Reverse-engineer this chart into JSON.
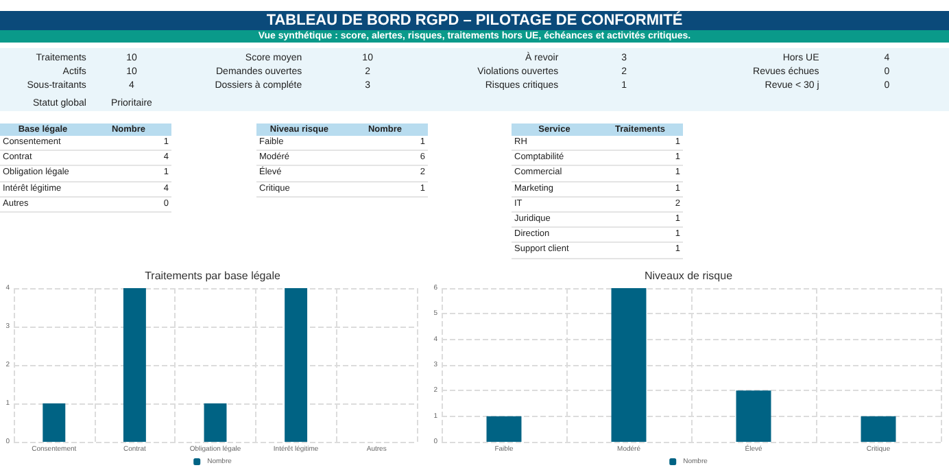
{
  "chart_data": [
    {
      "type": "other",
      "title": "TABLEAU DE BORD RGPD – PILOTAGE DE CONFORMITÉ",
      "subtitle": "Vue synthétique : score, alertes, risques, traitements hors UE, échéances et activités critiques."
    },
    {
      "type": "other",
      "annotations": [
        "Traitements",
        "10",
        "Actifs",
        "10",
        "Sous-traitants",
        "4",
        "Statut global",
        "Prioritaire"
      ]
    },
    {
      "type": "other",
      "annotations": [
        "Score moyen",
        "10",
        "Demandes ouvertes",
        "2",
        "Dossiers à compléte",
        "3"
      ]
    },
    {
      "type": "other",
      "annotations": [
        "À revoir",
        "3",
        "Violations ouvertes",
        "2",
        "Risques critiques",
        "1"
      ]
    },
    {
      "type": "other",
      "annotations": [
        "Hors UE",
        "4",
        "Revues échues",
        "0",
        "Revue < 30 j",
        "0"
      ]
    },
    {
      "type": "other",
      "xlabel": "Base légale",
      "ylabel": "Nombre",
      "categories": [
        "Consentement",
        "Contrat",
        "Obligation légale",
        "Intérêt légitime",
        "Autres"
      ],
      "values": [
        1,
        4,
        1,
        4,
        0
      ],
      "data_labels": true
    },
    {
      "type": "other",
      "xlabel": "Niveau risque",
      "ylabel": "Nombre",
      "categories": [
        "Faible",
        "Modéré",
        "Élevé",
        "Critique"
      ],
      "values": [
        1,
        6,
        2,
        1
      ],
      "data_labels": true
    },
    {
      "type": "other",
      "xlabel": "Service",
      "ylabel": "Traitements",
      "categories": [
        "RH",
        "Comptabilité",
        "Commercial",
        "Marketing",
        "IT",
        "Juridique",
        "Direction",
        "Support client"
      ],
      "values": [
        1,
        1,
        1,
        1,
        2,
        1,
        1,
        1
      ],
      "data_labels": true
    },
    {
      "type": "bar",
      "title": "Traitements par base légale",
      "categories": [
        "Consentement",
        "Contrat",
        "Obligation légale",
        "Intérêt légitime",
        "Autres"
      ],
      "series": [
        {
          "name": "Nombre",
          "color": "#006384",
          "values": [
            1,
            4,
            1,
            4,
            0
          ]
        }
      ],
      "ylim": [
        0,
        4
      ],
      "yticks": [
        0,
        1,
        2,
        3,
        4
      ],
      "grid": true,
      "legend": "bottom"
    },
    {
      "type": "bar",
      "title": "Niveaux de risque",
      "categories": [
        "Faible",
        "Modéré",
        "Élevé",
        "Critique"
      ],
      "series": [
        {
          "name": "Nombre",
          "color": "#006384",
          "values": [
            1,
            6,
            2,
            1
          ]
        }
      ],
      "ylim": [
        0,
        6
      ],
      "yticks": [
        0,
        1,
        2,
        3,
        4,
        5,
        6
      ],
      "grid": true,
      "legend": "bottom"
    }
  ]
}
